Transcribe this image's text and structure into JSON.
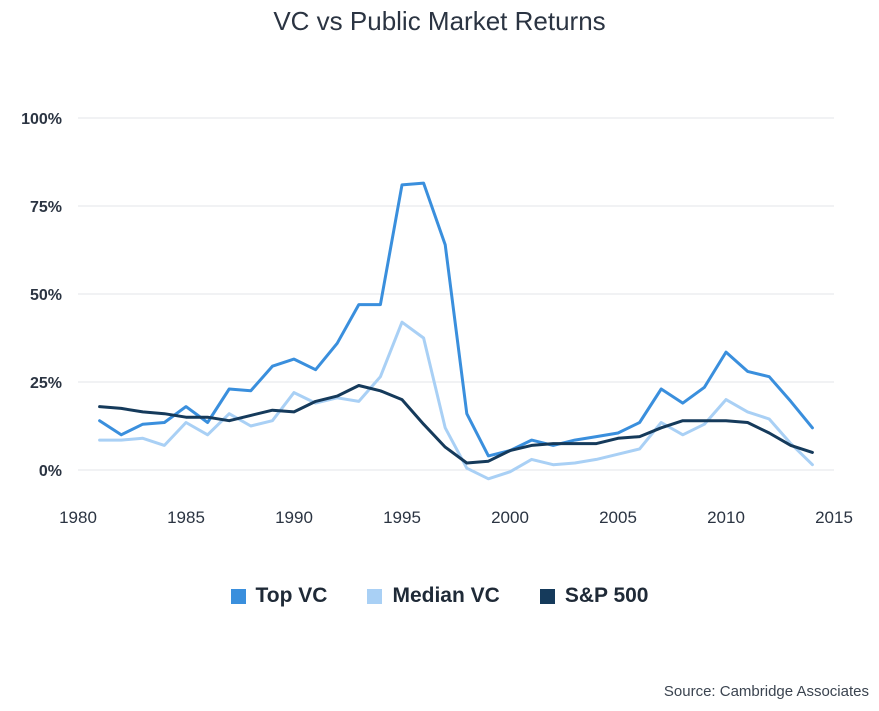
{
  "chart_data": {
    "type": "line",
    "title": "VC vs Public Market Returns",
    "xlabel": "",
    "ylabel": "",
    "xlim": [
      1980,
      2015
    ],
    "ylim": [
      0,
      100
    ],
    "grid": true,
    "legend_position": "bottom",
    "x_ticks": [
      1980,
      1985,
      1990,
      1995,
      2000,
      2005,
      2010,
      2015
    ],
    "x_tick_labels": [
      "1980",
      "1985",
      "1990",
      "1995",
      "2000",
      "2005",
      "2010",
      "2015"
    ],
    "y_ticks": [
      0,
      25,
      50,
      75,
      100
    ],
    "y_tick_labels": [
      "0%",
      "25%",
      "50%",
      "75%",
      "100%"
    ],
    "x": [
      1981,
      1982,
      1983,
      1984,
      1985,
      1986,
      1987,
      1988,
      1989,
      1990,
      1991,
      1992,
      1993,
      1994,
      1995,
      1996,
      1997,
      1998,
      1999,
      2000,
      2001,
      2002,
      2003,
      2004,
      2005,
      2006,
      2007,
      2008,
      2009,
      2010,
      2011,
      2012,
      2013,
      2014
    ],
    "series": [
      {
        "name": "Top VC",
        "color": "#3a8fdd",
        "values": [
          14,
          10,
          13,
          13.5,
          18,
          13.5,
          23,
          22.5,
          29.5,
          31.5,
          28.5,
          36,
          47,
          47,
          81,
          81.5,
          64,
          16,
          4,
          5.5,
          8.5,
          7,
          8.5,
          9.5,
          10.5,
          13.5,
          23,
          19,
          23.5,
          33.5,
          28,
          26.5,
          19.5,
          12
        ]
      },
      {
        "name": "Median VC",
        "color": "#a9d0f5",
        "values": [
          8.5,
          8.5,
          9,
          7,
          13.5,
          10,
          16,
          12.5,
          14,
          22,
          19,
          20.5,
          19.5,
          26.5,
          42,
          37.5,
          12,
          0.5,
          -2.5,
          -0.5,
          3,
          1.5,
          2,
          3,
          4.5,
          6,
          13.5,
          10,
          13,
          20,
          16.5,
          14.5,
          7.5,
          1.5
        ]
      },
      {
        "name": "S&P 500",
        "color": "#153a5b",
        "values": [
          18,
          17.5,
          16.5,
          16,
          15,
          15,
          14,
          15.5,
          17,
          16.5,
          19.5,
          21,
          24,
          22.5,
          20,
          13,
          6.5,
          2,
          2.5,
          5.5,
          7,
          7.5,
          7.5,
          7.5,
          9,
          9.5,
          12,
          14,
          14,
          14,
          13.5,
          10.5,
          7,
          5
        ]
      }
    ],
    "source": "Source: Cambridge Associates"
  }
}
